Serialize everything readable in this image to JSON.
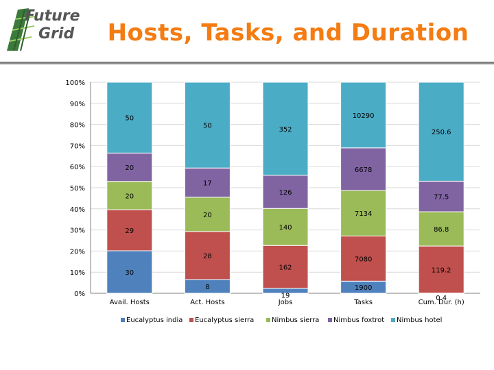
{
  "logo": {
    "line1": "Future",
    "line2": "Grid"
  },
  "title": "Hosts, Tasks, and Duration",
  "chart_data": {
    "type": "bar",
    "stacked": "percent",
    "categories": [
      "Avail. Hosts",
      "Act. Hosts",
      "Jobs",
      "Tasks",
      "Cum. Dur. (h)"
    ],
    "series": [
      {
        "name": "Eucalyptus india",
        "color": "#4f81bd",
        "values": [
          30,
          8,
          19,
          1900,
          0.4
        ],
        "labels": [
          "30",
          "8",
          "19",
          "1900",
          "0.4"
        ]
      },
      {
        "name": "Eucalyptus sierra",
        "color": "#c0504d",
        "values": [
          29,
          28,
          162,
          7080,
          119.2
        ],
        "labels": [
          "29",
          "28",
          "162",
          "7080",
          "119.2"
        ]
      },
      {
        "name": "Nimbus sierra",
        "color": "#9bbb59",
        "values": [
          20,
          20,
          140,
          7134,
          86.8
        ],
        "labels": [
          "20",
          "20",
          "140",
          "7134",
          "86.8"
        ]
      },
      {
        "name": "Nimbus foxtrot",
        "color": "#8064a2",
        "values": [
          20,
          17,
          126,
          6678,
          77.5
        ],
        "labels": [
          "20",
          "17",
          "126",
          "6678",
          "77.5"
        ]
      },
      {
        "name": "Nimbus hotel",
        "color": "#4bacc6",
        "values": [
          50,
          50,
          352,
          10290,
          250.6
        ],
        "labels": [
          "50",
          "50",
          "352",
          "10290",
          "250.6"
        ]
      }
    ],
    "yticks": [
      "0%",
      "10%",
      "20%",
      "30%",
      "40%",
      "50%",
      "60%",
      "70%",
      "80%",
      "90%",
      "100%"
    ],
    "ylim": [
      0,
      100
    ],
    "legend": "bottom"
  }
}
